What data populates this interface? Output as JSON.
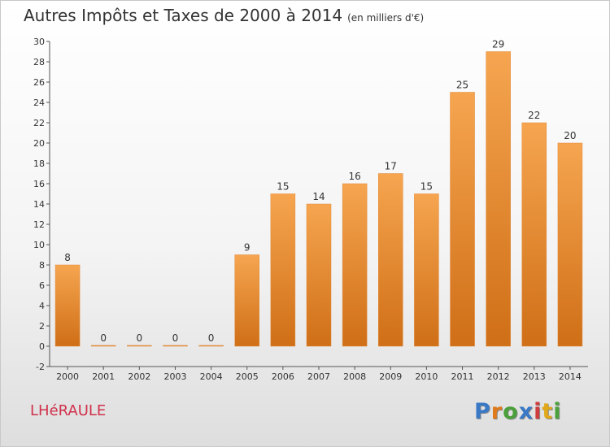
{
  "header": {
    "title": "Autres Impôts et Taxes de 2000 à 2014",
    "unit": "(en milliers d'€)"
  },
  "footer": {
    "city": "LHéRAULE",
    "brand": [
      "P",
      "r",
      "o",
      "x",
      "i",
      "t",
      "i"
    ]
  },
  "colors": {
    "bar_top": "#f6a550",
    "bar_bottom": "#cf6f17",
    "brand": [
      "#3a79c6",
      "#e07a1a",
      "#4aa03a",
      "#3a79c6",
      "#d03c3c",
      "#e0a81a",
      "#4aa03a"
    ]
  },
  "chart_data": {
    "type": "bar",
    "title": "Autres Impôts et Taxes de 2000 à 2014",
    "subtitle": "(en milliers d'€)",
    "categories": [
      "2000",
      "2001",
      "2002",
      "2003",
      "2004",
      "2005",
      "2006",
      "2007",
      "2008",
      "2009",
      "2010",
      "2011",
      "2012",
      "2013",
      "2014"
    ],
    "values": [
      8,
      0,
      0,
      0,
      0,
      9,
      15,
      14,
      16,
      17,
      15,
      25,
      29,
      22,
      20
    ],
    "ylim": [
      -2,
      30
    ],
    "yticks": [
      -2,
      0,
      2,
      4,
      6,
      8,
      10,
      12,
      14,
      16,
      18,
      20,
      22,
      24,
      26,
      28,
      30
    ],
    "grid": false,
    "legend": "none"
  }
}
